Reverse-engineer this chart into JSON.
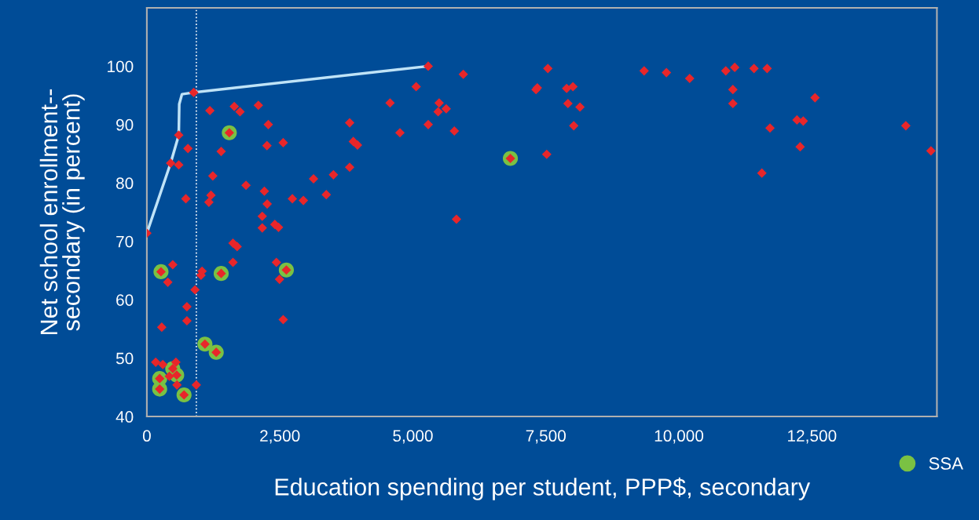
{
  "chart_data": {
    "type": "scatter",
    "xlabel": "Education spending per student, PPP$, secondary",
    "ylabel": "Net school enrollment--\nsecondary (in percent)",
    "xlim": [
      0,
      14850
    ],
    "ylim": [
      40,
      110
    ],
    "xticks": [
      0,
      {
        "value": 2500,
        "label": "2,500"
      },
      {
        "value": 5000,
        "label": "5,000"
      },
      {
        "value": 7500,
        "label": "7,500"
      },
      {
        "value": 10000,
        "label": "10,000"
      },
      {
        "value": 12500,
        "label": "12,500"
      }
    ],
    "yticks": [
      40,
      50,
      60,
      70,
      80,
      90,
      100
    ],
    "legend": "bottom right",
    "ref_lines": [
      {
        "axis": "x",
        "value": 930,
        "color": "#ffffff",
        "line_style": "dotted"
      }
    ],
    "series": [
      {
        "name": "SSA",
        "marker": "circle",
        "color": "#7ac143",
        "x": [
          1550,
          266,
          1397,
          2622,
          1092,
          1304,
          487,
          561,
          241,
          241,
          699,
          6833
        ],
        "values": [
          88.6,
          64.8,
          64.5,
          65.1,
          52.4,
          51.0,
          48.2,
          47.1,
          46.5,
          44.7,
          43.7,
          84.2
        ]
      },
      {
        "type": "line",
        "marker": "none",
        "line_style": "solid",
        "color": "#bfe3f7",
        "x": [
          0,
          447,
          600,
          609,
          660,
          881,
          5289
        ],
        "values": [
          71.4,
          83.4,
          88.2,
          93.5,
          95.2,
          95.5,
          100
        ]
      },
      {
        "marker": "diamond",
        "color": "#e8262a",
        "x": [
          0,
          881,
          600,
          447,
          600,
          772,
          1185,
          1643,
          1751,
          2096,
          2283,
          1550,
          1397,
          2258,
          2563,
          1240,
          1864,
          2209,
          733,
          1205,
          1166,
          2262,
          2735,
          2942,
          3133,
          3507,
          3373,
          3812,
          3812,
          3881,
          3959,
          2169,
          2169,
          2406,
          2475,
          1619,
          1697,
          1619,
          2435,
          2622,
          2494,
          2563,
          266,
          487,
          394,
          1397,
          1038,
          1018,
          905,
          753,
          753,
          280,
          1092,
          1304,
          167,
          300,
          546,
          487,
          561,
          423,
          241,
          241,
          566,
          699,
          930,
          5289,
          5948,
          5062,
          4571,
          5494,
          5475,
          5627,
          5289,
          4757,
          5780,
          6833,
          7516,
          5820,
          7537,
          7340,
          7315,
          7891,
          8009,
          7915,
          8141,
          8024,
          9347,
          9766,
          10203,
          10882,
          11050,
          11412,
          11659,
          11015,
          11015,
          12559,
          12220,
          12338,
          11713,
          12279,
          11560,
          14266,
          14738
        ],
        "values": [
          71.4,
          95.5,
          88.2,
          83.4,
          83.1,
          85.9,
          92.4,
          93.1,
          92.2,
          93.3,
          90.0,
          88.6,
          85.4,
          86.4,
          86.9,
          81.2,
          79.6,
          78.6,
          77.3,
          77.9,
          76.7,
          76.4,
          77.3,
          77.0,
          80.7,
          81.4,
          78.0,
          90.3,
          82.7,
          87.1,
          86.5,
          74.3,
          72.3,
          72.9,
          72.4,
          69.7,
          69.1,
          66.4,
          66.4,
          65.1,
          63.5,
          56.6,
          64.8,
          66.0,
          63.0,
          64.5,
          64.9,
          64.2,
          61.7,
          58.8,
          56.4,
          55.3,
          52.4,
          51.0,
          49.3,
          48.9,
          49.3,
          48.2,
          47.1,
          46.9,
          46.5,
          44.7,
          45.4,
          43.7,
          45.4,
          100,
          98.6,
          96.5,
          93.7,
          93.7,
          92.2,
          92.7,
          90.0,
          88.6,
          88.9,
          84.2,
          84.9,
          73.8,
          99.6,
          96.3,
          96.0,
          96.2,
          96.5,
          93.6,
          93.0,
          89.8,
          99.2,
          98.9,
          97.9,
          99.2,
          99.8,
          99.6,
          99.6,
          96.0,
          93.6,
          94.6,
          90.8,
          90.6,
          89.4,
          86.2,
          81.7,
          89.8,
          85.5
        ]
      }
    ]
  }
}
